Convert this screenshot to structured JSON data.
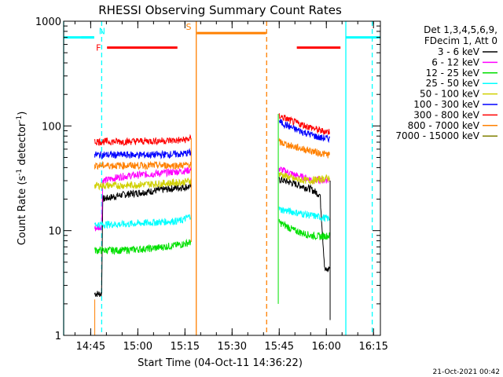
{
  "chart_data": {
    "type": "line",
    "title": "RHESSI Observing Summary Count Rates",
    "xlabel": "Start Time (04-Oct-11 14:36:22)",
    "ylabel": "Count Rate (s",
    "ylabel_sup": "-1",
    "ylabel_tail": " detector",
    "ylabel_tail_sup": "-1",
    "ylabel_end": ")",
    "yscale": "log",
    "ylim": [
      1,
      1000
    ],
    "xlim_minutes": [
      36.4,
      137.2
    ],
    "x_ticks": [
      {
        "label": "14:45",
        "minute": 45
      },
      {
        "label": "15:00",
        "minute": 60
      },
      {
        "label": "15:15",
        "minute": 75
      },
      {
        "label": "15:30",
        "minute": 90
      },
      {
        "label": "15:45",
        "minute": 105
      },
      {
        "label": "16:00",
        "minute": 120
      },
      {
        "label": "16:15",
        "minute": 135
      }
    ],
    "y_ticks": [
      {
        "label": "1",
        "value": 1
      },
      {
        "label": "10",
        "value": 10
      },
      {
        "label": "100",
        "value": 100
      },
      {
        "label": "1000",
        "value": 1000
      }
    ],
    "legend_header": [
      "Det 1,3,4,5,6,9,",
      "FDecim 1, Att 0"
    ],
    "series": [
      {
        "name": "3 - 6 keV",
        "color": "#000000",
        "seg1": [
          [
            46.3,
            2.5
          ],
          [
            48.5,
            2.5
          ],
          [
            48.8,
            20
          ],
          [
            55,
            22
          ],
          [
            65,
            24
          ],
          [
            74,
            26
          ],
          [
            77,
            26.5
          ]
        ],
        "seg2": [
          [
            105,
            31
          ],
          [
            110,
            28
          ],
          [
            115,
            25
          ],
          [
            118,
            22
          ],
          [
            119.5,
            4.2
          ],
          [
            120.5,
            4.2
          ],
          [
            121,
            4.5
          ]
        ]
      },
      {
        "name": "6 - 12 keV",
        "color": "#ff00ff",
        "seg1": [
          [
            46.3,
            10.5
          ],
          [
            48.5,
            11
          ],
          [
            48.8,
            30
          ],
          [
            55,
            33
          ],
          [
            65,
            35
          ],
          [
            74,
            37
          ],
          [
            77,
            38
          ]
        ],
        "seg2": [
          [
            105,
            39
          ],
          [
            110,
            34
          ],
          [
            115,
            31
          ],
          [
            118,
            30
          ],
          [
            121,
            31
          ]
        ]
      },
      {
        "name": "12 - 25 keV",
        "color": "#00e000",
        "seg1": [
          [
            46.3,
            6.5
          ],
          [
            55,
            6.5
          ],
          [
            65,
            6.8
          ],
          [
            74,
            7.4
          ],
          [
            77,
            7.8
          ]
        ],
        "seg2": [
          [
            105,
            12
          ],
          [
            110,
            10
          ],
          [
            115,
            9
          ],
          [
            118,
            8.8
          ],
          [
            121,
            9
          ]
        ]
      },
      {
        "name": "25 - 50 keV",
        "color": "#00ffff",
        "seg1": [
          [
            46.3,
            11.5
          ],
          [
            55,
            11.5
          ],
          [
            65,
            12
          ],
          [
            74,
            12.5
          ],
          [
            77,
            14
          ]
        ],
        "seg2": [
          [
            105,
            16
          ],
          [
            110,
            15
          ],
          [
            115,
            14
          ],
          [
            118,
            13.5
          ],
          [
            121,
            13
          ]
        ]
      },
      {
        "name": "50 - 100 keV",
        "color": "#d0d000",
        "seg1": [
          [
            46.3,
            27
          ],
          [
            55,
            27
          ],
          [
            65,
            28
          ],
          [
            74,
            29
          ],
          [
            77,
            30
          ]
        ],
        "seg2": [
          [
            105,
            35
          ],
          [
            110,
            31
          ],
          [
            115,
            30
          ],
          [
            118,
            31
          ],
          [
            121,
            32
          ]
        ]
      },
      {
        "name": "100 - 300 keV",
        "color": "#0000ff",
        "seg1": [
          [
            46.3,
            53
          ],
          [
            55,
            53
          ],
          [
            65,
            53
          ],
          [
            74,
            54
          ],
          [
            77,
            56
          ]
        ],
        "seg2": [
          [
            105,
            110
          ],
          [
            110,
            93
          ],
          [
            115,
            83
          ],
          [
            118,
            77
          ],
          [
            121,
            76
          ]
        ]
      },
      {
        "name": "300 - 800 keV",
        "color": "#ff0000",
        "seg1": [
          [
            46.3,
            71
          ],
          [
            55,
            71
          ],
          [
            65,
            72
          ],
          [
            74,
            73
          ],
          [
            77,
            76
          ]
        ],
        "seg2": [
          [
            105,
            125
          ],
          [
            110,
            108
          ],
          [
            115,
            97
          ],
          [
            118,
            90
          ],
          [
            121,
            88
          ]
        ]
      },
      {
        "name": "800 - 7000 keV",
        "color": "#ff8000",
        "seg1": [
          [
            46.3,
            42
          ],
          [
            55,
            42
          ],
          [
            65,
            42
          ],
          [
            74,
            42
          ],
          [
            77,
            43
          ]
        ],
        "seg2": [
          [
            105,
            70
          ],
          [
            110,
            63
          ],
          [
            115,
            58
          ],
          [
            118,
            55
          ],
          [
            121,
            53
          ]
        ]
      },
      {
        "name": "7000 - 15000 keV",
        "color": "#808000",
        "seg1": [],
        "seg2": []
      }
    ],
    "segments": [
      {
        "label": "",
        "color": "#00ffff",
        "x0": 36.4,
        "x1": 46.1,
        "y": 700
      },
      {
        "label": "N",
        "color": "#00ffff",
        "x0": 42,
        "x1": 46.1,
        "y": 700
      },
      {
        "label": "F",
        "color": "#ff0000",
        "x0": 50.2,
        "x1": 72.6,
        "y": 560
      },
      {
        "label": "S",
        "color": "#ff8000",
        "x0": 78.8,
        "x1": 100.8,
        "y": 770
      },
      {
        "label": "",
        "color": "#ff0000",
        "x0": 110.6,
        "x1": 124.5,
        "y": 560
      },
      {
        "label": "",
        "color": "#00ffff",
        "x0": 126.2,
        "x1": 137.2,
        "y": 700
      }
    ],
    "vlines": [
      {
        "minute": 36.4,
        "color": "#00ffff",
        "style": "solid"
      },
      {
        "minute": 48.5,
        "color": "#00ffff",
        "style": "dashed"
      },
      {
        "minute": 78.6,
        "color": "#ff8000",
        "style": "solid"
      },
      {
        "minute": 101.0,
        "color": "#ff8000",
        "style": "dashed"
      },
      {
        "minute": 126.2,
        "color": "#00ffff",
        "style": "solid"
      },
      {
        "minute": 134.6,
        "color": "#00ffff",
        "style": "dashed"
      }
    ],
    "timestamp": "21-Oct-2021 00:42"
  }
}
